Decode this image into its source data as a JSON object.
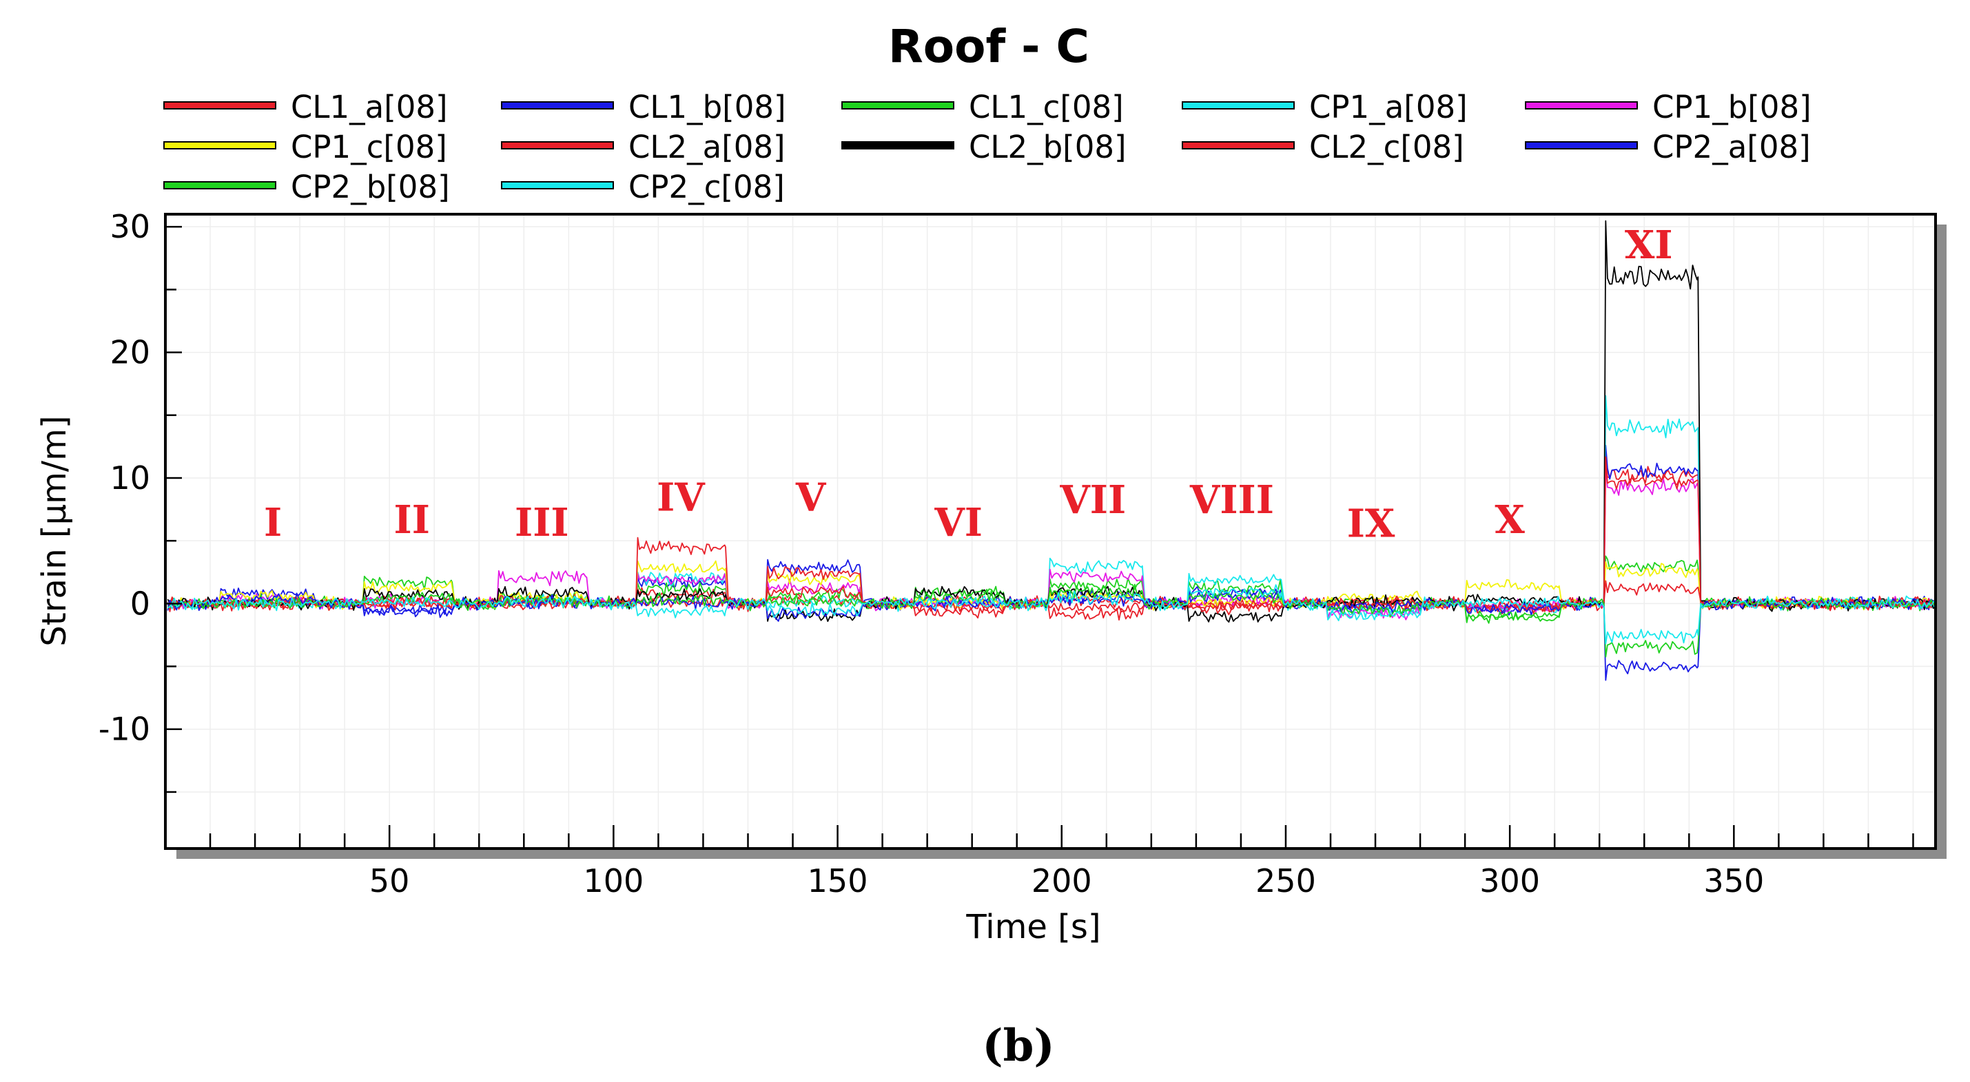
{
  "chart_data": {
    "type": "line",
    "title": "Roof - C",
    "panel_label": "(b)",
    "xlabel": "Time [s]",
    "ylabel": "Strain [μm/m]",
    "xlim": [
      0,
      395
    ],
    "ylim": [
      -19.5,
      31
    ],
    "x_ticks": [
      50,
      100,
      150,
      200,
      250,
      300,
      350
    ],
    "y_ticks": [
      -10,
      0,
      10,
      20,
      30
    ],
    "grid": true,
    "legend_position": "top",
    "series": [
      {
        "name": "CL1_a[08]",
        "color": "#e8202a",
        "levels": [
          0,
          0,
          0,
          0.8,
          0.3,
          0.1,
          0.2,
          0,
          0.1,
          -0.3,
          10.2
        ]
      },
      {
        "name": "CL1_b[08]",
        "color": "#1a1ae6",
        "levels": [
          0.8,
          -0.5,
          0.1,
          1.6,
          2.9,
          0.2,
          0.6,
          0.8,
          -0.4,
          -0.4,
          10.6
        ]
      },
      {
        "name": "CL1_c[08]",
        "color": "#1fd11f",
        "levels": [
          0.2,
          1.7,
          0.4,
          1.2,
          0.6,
          0.9,
          1.5,
          1.3,
          0.1,
          -1.0,
          3.0
        ]
      },
      {
        "name": "CP1_a[08]",
        "color": "#19e8ec",
        "levels": [
          0,
          0.2,
          0.3,
          2.0,
          0.1,
          0.1,
          3.0,
          1.9,
          -0.6,
          -0.3,
          14.0
        ]
      },
      {
        "name": "CP1_b[08]",
        "color": "#e619e6",
        "levels": [
          0.4,
          0.2,
          2.1,
          1.9,
          1.3,
          0.1,
          2.2,
          0.3,
          -0.8,
          -0.2,
          9.3
        ]
      },
      {
        "name": "CP1_c[08]",
        "color": "#f2f20a",
        "levels": [
          0.6,
          1.3,
          0.5,
          2.8,
          2.0,
          0.1,
          0.6,
          0.2,
          0.5,
          1.4,
          2.6
        ]
      },
      {
        "name": "CL2_a[08]",
        "color": "#e8202a",
        "levels": [
          0,
          0.1,
          0.2,
          4.5,
          0.9,
          -0.6,
          -0.3,
          -0.2,
          -0.1,
          -0.2,
          1.3
        ]
      },
      {
        "name": "CL2_b[08]",
        "color": "#000000",
        "levels": [
          0,
          0.8,
          0.8,
          0.7,
          -1.0,
          0.8,
          0.9,
          -1.0,
          0.2,
          0.3,
          26.0
        ]
      },
      {
        "name": "CL2_c[08]",
        "color": "#e8202a",
        "levels": [
          0,
          0,
          0.1,
          0.1,
          2.4,
          -0.3,
          -0.8,
          -0.3,
          0,
          -0.4,
          9.8
        ]
      },
      {
        "name": "CP2_a[08]",
        "color": "#1a1ae6",
        "levels": [
          0.3,
          -0.6,
          0.1,
          0.1,
          -0.8,
          0,
          0.3,
          0.6,
          -0.2,
          -0.5,
          -5.0
        ]
      },
      {
        "name": "CP2_b[08]",
        "color": "#1fd11f",
        "levels": [
          0,
          0.5,
          0.2,
          0.3,
          0.2,
          0.5,
          0.9,
          0.5,
          -0.5,
          -1.1,
          -3.4
        ]
      },
      {
        "name": "CP2_c[08]",
        "color": "#19e8ec",
        "levels": [
          0,
          0.1,
          0.1,
          -0.6,
          -0.5,
          0.1,
          0.4,
          0.9,
          -0.9,
          0.1,
          -2.5
        ]
      }
    ],
    "load_cases": [
      {
        "label": "I",
        "start": 12,
        "end": 33,
        "label_x": 24,
        "label_y": 5.4
      },
      {
        "label": "II",
        "start": 44,
        "end": 64,
        "label_x": 55,
        "label_y": 5.6
      },
      {
        "label": "III",
        "start": 74,
        "end": 94,
        "label_x": 84,
        "label_y": 5.4
      },
      {
        "label": "IV",
        "start": 105,
        "end": 125,
        "label_x": 115,
        "label_y": 7.4
      },
      {
        "label": "V",
        "start": 134,
        "end": 155,
        "label_x": 144,
        "label_y": 7.4
      },
      {
        "label": "VI",
        "start": 167,
        "end": 187,
        "label_x": 177,
        "label_y": 5.4
      },
      {
        "label": "VII",
        "start": 197,
        "end": 218,
        "label_x": 207,
        "label_y": 7.2
      },
      {
        "label": "VIII",
        "start": 228,
        "end": 249,
        "label_x": 238,
        "label_y": 7.2
      },
      {
        "label": "IX",
        "start": 259,
        "end": 280,
        "label_x": 269,
        "label_y": 5.3
      },
      {
        "label": "X",
        "start": 290,
        "end": 311,
        "label_x": 300,
        "label_y": 5.6
      },
      {
        "label": "XI",
        "start": 321,
        "end": 342,
        "label_x": 331,
        "label_y": 27.5
      }
    ]
  }
}
